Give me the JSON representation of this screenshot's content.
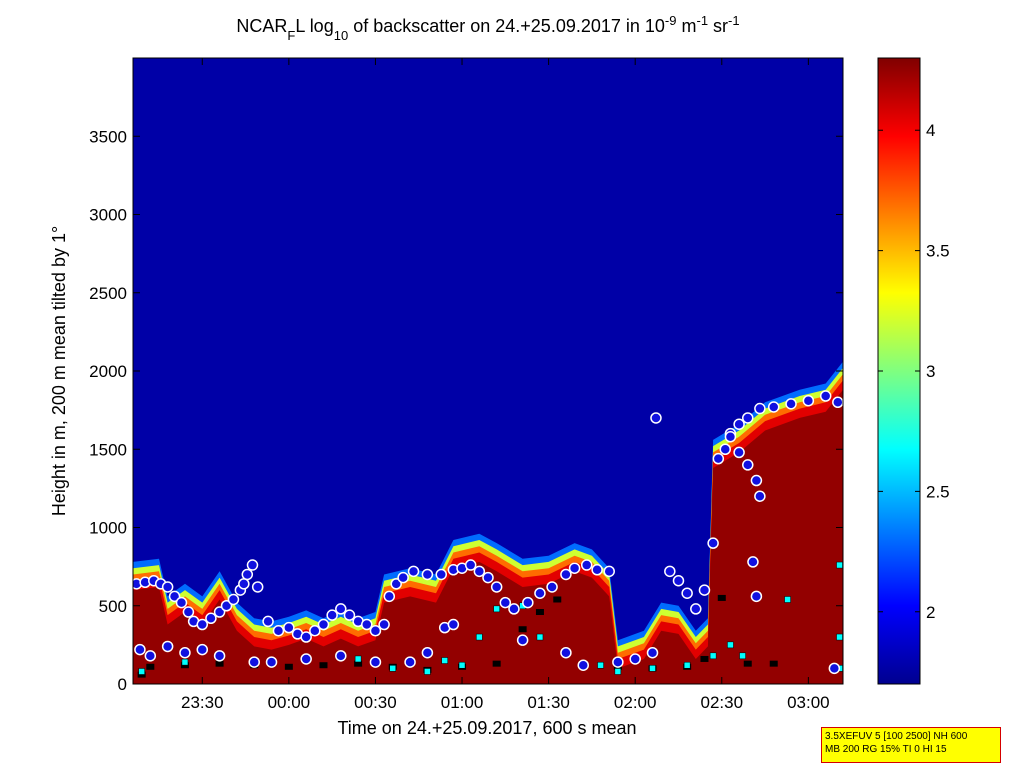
{
  "chart_data": {
    "type": "heatmap",
    "title_parts": [
      "NCAR",
      "F",
      "L log",
      "10",
      " of backscatter on 24.+25.09.2017 in 10",
      "-9",
      " m",
      "-1",
      " sr",
      "-1"
    ],
    "xlabel": "Time on 24.+25.09.2017, 600 s mean",
    "ylabel": "Height in m, 200 m mean tilted by 1°",
    "x_unit": "hours after 00:00 on 25.09.2017",
    "x_range": [
      -0.9,
      3.2
    ],
    "x_ticks": [
      -0.5,
      0,
      0.5,
      1,
      1.5,
      2,
      2.5,
      3
    ],
    "x_ticklabels": [
      "23:30",
      "00:00",
      "00:30",
      "01:00",
      "01:30",
      "02:00",
      "02:30",
      "03:00"
    ],
    "y_range": [
      0,
      4000
    ],
    "y_ticks": [
      0,
      500,
      1000,
      1500,
      2000,
      2500,
      3000,
      3500
    ],
    "y_ticklabels": [
      "0",
      "500",
      "1000",
      "1500",
      "2000",
      "2500",
      "3000",
      "3500"
    ],
    "colorbar": {
      "range": [
        1.7,
        4.3
      ],
      "ticks": [
        2,
        2.5,
        3,
        3.5,
        4
      ],
      "ticklabels": [
        "2",
        "2.5",
        "3",
        "3.5",
        "4"
      ],
      "colormap": "jet"
    },
    "background_value": 1.8,
    "aerosol_layer_top": [
      [
        -0.9,
        780
      ],
      [
        -0.75,
        800
      ],
      [
        -0.7,
        560
      ],
      [
        -0.6,
        640
      ],
      [
        -0.5,
        560
      ],
      [
        -0.4,
        720
      ],
      [
        -0.3,
        520
      ],
      [
        -0.2,
        420
      ],
      [
        -0.1,
        400
      ],
      [
        0.0,
        430
      ],
      [
        0.1,
        470
      ],
      [
        0.2,
        420
      ],
      [
        0.3,
        470
      ],
      [
        0.4,
        420
      ],
      [
        0.5,
        460
      ],
      [
        0.55,
        700
      ],
      [
        0.7,
        740
      ],
      [
        0.85,
        700
      ],
      [
        0.95,
        920
      ],
      [
        1.1,
        960
      ],
      [
        1.2,
        900
      ],
      [
        1.35,
        800
      ],
      [
        1.5,
        820
      ],
      [
        1.65,
        900
      ],
      [
        1.75,
        860
      ],
      [
        1.85,
        740
      ],
      [
        1.9,
        280
      ],
      [
        2.05,
        340
      ],
      [
        2.15,
        520
      ],
      [
        2.25,
        500
      ],
      [
        2.35,
        340
      ],
      [
        2.42,
        420
      ],
      [
        2.45,
        1560
      ],
      [
        2.6,
        1660
      ],
      [
        2.75,
        1800
      ],
      [
        2.95,
        1880
      ],
      [
        3.1,
        1920
      ],
      [
        3.2,
        2060
      ]
    ],
    "marker_series": [
      {
        "marker": "purple circle, white edge",
        "points": [
          [
            -0.88,
            640
          ],
          [
            -0.83,
            650
          ],
          [
            -0.78,
            660
          ],
          [
            -0.74,
            640
          ],
          [
            -0.7,
            620
          ],
          [
            -0.66,
            560
          ],
          [
            -0.62,
            520
          ],
          [
            -0.58,
            460
          ],
          [
            -0.55,
            400
          ],
          [
            -0.5,
            380
          ],
          [
            -0.45,
            420
          ],
          [
            -0.4,
            460
          ],
          [
            -0.36,
            500
          ],
          [
            -0.32,
            540
          ],
          [
            -0.28,
            600
          ],
          [
            -0.26,
            640
          ],
          [
            -0.24,
            700
          ],
          [
            -0.21,
            760
          ],
          [
            -0.18,
            620
          ],
          [
            -0.12,
            400
          ],
          [
            -0.06,
            340
          ],
          [
            0.0,
            360
          ],
          [
            0.05,
            320
          ],
          [
            0.1,
            300
          ],
          [
            0.15,
            340
          ],
          [
            0.2,
            380
          ],
          [
            0.25,
            440
          ],
          [
            0.3,
            480
          ],
          [
            0.35,
            440
          ],
          [
            0.4,
            400
          ],
          [
            0.45,
            380
          ],
          [
            0.5,
            340
          ],
          [
            0.55,
            380
          ],
          [
            0.58,
            560
          ],
          [
            0.62,
            640
          ],
          [
            0.66,
            680
          ],
          [
            0.72,
            720
          ],
          [
            0.8,
            700
          ],
          [
            0.88,
            700
          ],
          [
            0.95,
            730
          ],
          [
            1.0,
            740
          ],
          [
            1.05,
            760
          ],
          [
            1.1,
            720
          ],
          [
            1.15,
            680
          ],
          [
            1.2,
            620
          ],
          [
            1.25,
            520
          ],
          [
            1.3,
            480
          ],
          [
            1.38,
            520
          ],
          [
            1.45,
            580
          ],
          [
            1.52,
            620
          ],
          [
            1.6,
            700
          ],
          [
            1.65,
            740
          ],
          [
            1.72,
            760
          ],
          [
            1.78,
            730
          ],
          [
            1.85,
            720
          ],
          [
            -0.86,
            220
          ],
          [
            -0.8,
            180
          ],
          [
            -0.7,
            240
          ],
          [
            -0.6,
            200
          ],
          [
            -0.5,
            220
          ],
          [
            -0.4,
            180
          ],
          [
            -0.2,
            140
          ],
          [
            -0.1,
            140
          ],
          [
            0.1,
            160
          ],
          [
            0.3,
            180
          ],
          [
            0.5,
            140
          ],
          [
            0.7,
            140
          ],
          [
            0.8,
            200
          ],
          [
            0.9,
            360
          ],
          [
            0.95,
            380
          ],
          [
            1.35,
            280
          ],
          [
            1.6,
            200
          ],
          [
            1.7,
            120
          ],
          [
            1.9,
            140
          ],
          [
            2.0,
            160
          ],
          [
            2.1,
            200
          ],
          [
            2.12,
            1700
          ],
          [
            2.2,
            720
          ],
          [
            2.25,
            660
          ],
          [
            2.3,
            580
          ],
          [
            2.35,
            480
          ],
          [
            2.4,
            600
          ],
          [
            2.45,
            900
          ],
          [
            2.48,
            1440
          ],
          [
            2.52,
            1500
          ],
          [
            2.55,
            1600
          ],
          [
            2.6,
            1660
          ],
          [
            2.65,
            1700
          ],
          [
            2.72,
            1760
          ],
          [
            2.8,
            1770
          ],
          [
            2.9,
            1790
          ],
          [
            3.0,
            1810
          ],
          [
            3.1,
            1840
          ],
          [
            3.17,
            1800
          ],
          [
            2.65,
            1400
          ],
          [
            2.7,
            1300
          ],
          [
            2.72,
            1200
          ],
          [
            2.55,
            1580
          ],
          [
            2.6,
            1480
          ],
          [
            2.68,
            780
          ],
          [
            2.7,
            560
          ],
          [
            3.15,
            100
          ]
        ]
      },
      {
        "marker": "cyan square",
        "points": [
          [
            -0.85,
            80
          ],
          [
            -0.6,
            140
          ],
          [
            0.4,
            160
          ],
          [
            0.6,
            100
          ],
          [
            0.8,
            80
          ],
          [
            0.9,
            150
          ],
          [
            1.0,
            120
          ],
          [
            1.1,
            300
          ],
          [
            1.2,
            480
          ],
          [
            1.35,
            500
          ],
          [
            1.45,
            300
          ],
          [
            1.6,
            200
          ],
          [
            1.8,
            120
          ],
          [
            1.9,
            80
          ],
          [
            2.1,
            100
          ],
          [
            2.3,
            120
          ],
          [
            2.45,
            180
          ],
          [
            2.55,
            250
          ],
          [
            2.62,
            180
          ],
          [
            2.88,
            540
          ],
          [
            3.18,
            760
          ],
          [
            3.18,
            300
          ],
          [
            3.18,
            100
          ]
        ]
      },
      {
        "marker": "black square",
        "points": [
          [
            -0.85,
            60
          ],
          [
            -0.8,
            110
          ],
          [
            -0.6,
            120
          ],
          [
            -0.4,
            130
          ],
          [
            -0.2,
            120
          ],
          [
            0.0,
            110
          ],
          [
            0.2,
            120
          ],
          [
            0.4,
            130
          ],
          [
            0.6,
            110
          ],
          [
            0.8,
            90
          ],
          [
            1.0,
            110
          ],
          [
            1.2,
            130
          ],
          [
            1.35,
            350
          ],
          [
            1.45,
            460
          ],
          [
            1.55,
            540
          ],
          [
            1.7,
            130
          ],
          [
            1.9,
            110
          ],
          [
            2.1,
            100
          ],
          [
            2.3,
            110
          ],
          [
            2.4,
            160
          ],
          [
            2.5,
            550
          ],
          [
            2.65,
            130
          ],
          [
            2.8,
            130
          ],
          [
            3.18,
            100
          ]
        ]
      }
    ],
    "grid": false,
    "legend": "none"
  },
  "info_box": {
    "line1": "3.5XEFUV 5 [100 2500] NH 600",
    "line2": "MB 200 RG 15% TI 0 HI 15"
  }
}
